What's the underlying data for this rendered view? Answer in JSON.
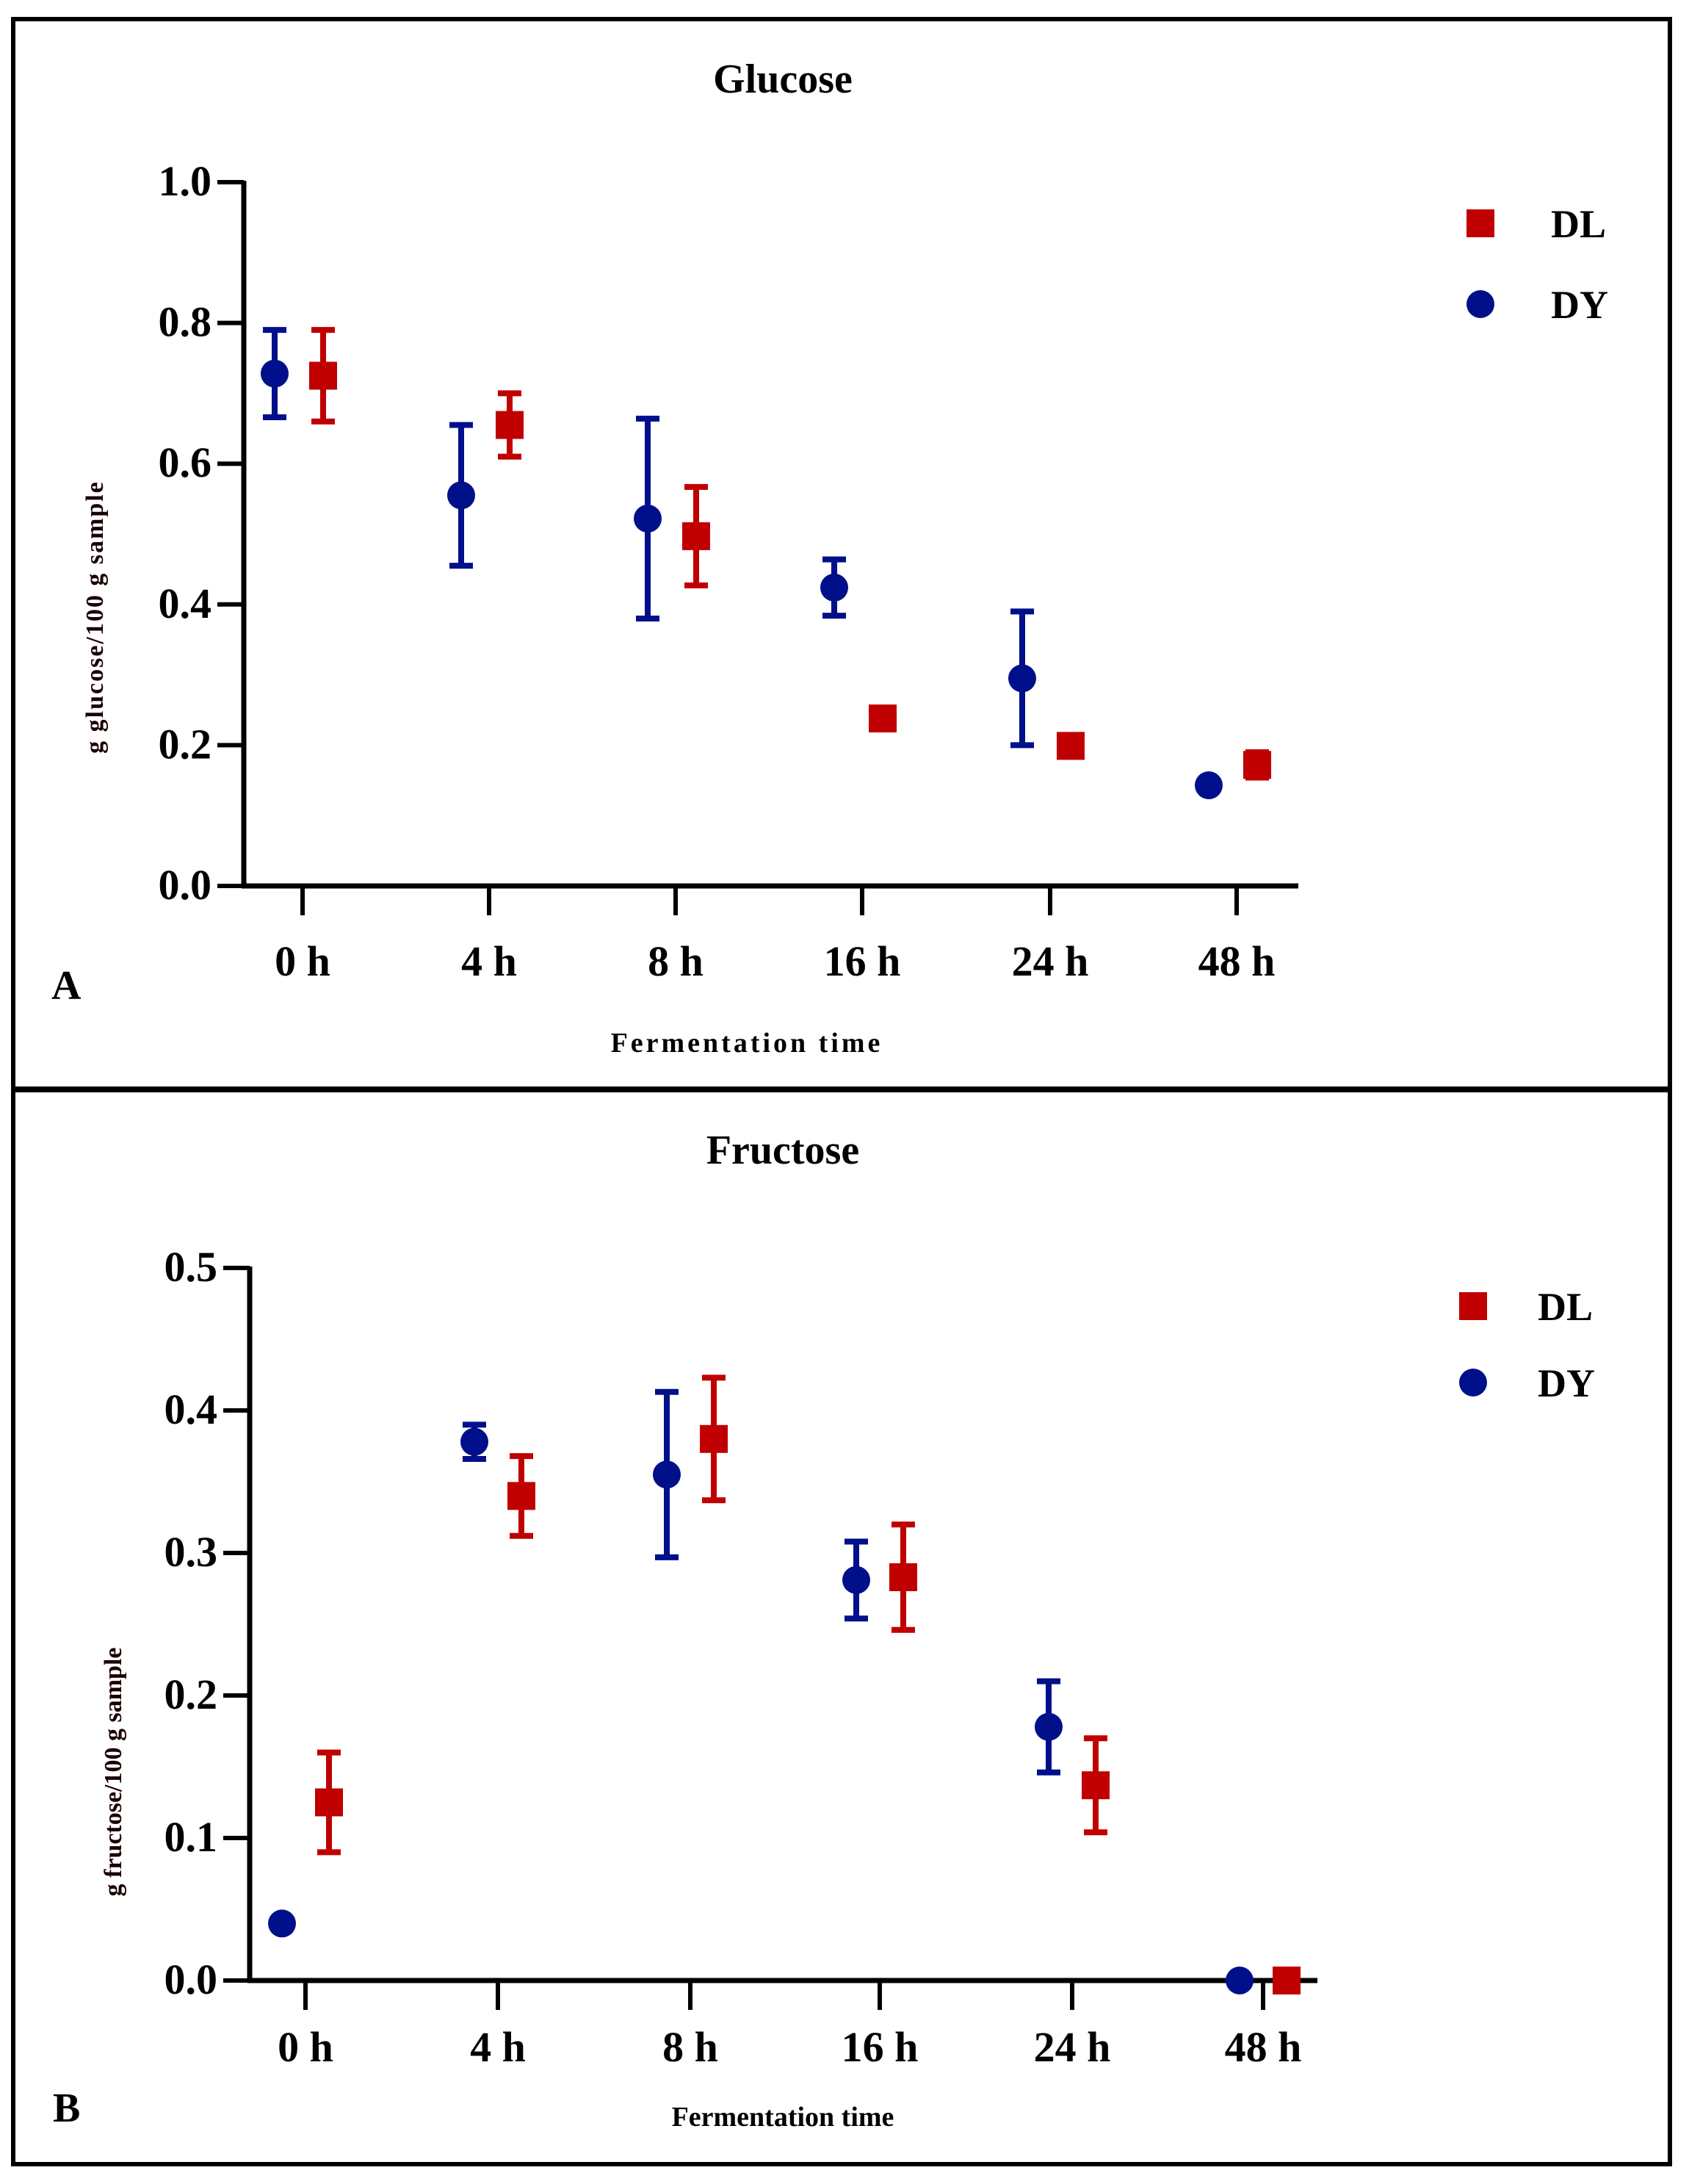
{
  "colors": {
    "DL": "#c00000",
    "DY": "#000f8a"
  },
  "chart_data": [
    {
      "type": "scatter",
      "panel_label": "A",
      "title": "Glucose",
      "xlabel": "Fermentation time",
      "ylabel": "g glucose/100 g sample",
      "categories": [
        "0 h",
        "4 h",
        "8 h",
        "16 h",
        "24 h",
        "48 h"
      ],
      "ylim": [
        0,
        1.0
      ],
      "yticks": [
        "0.0",
        "0.2",
        "0.4",
        "0.6",
        "0.8",
        "1.0"
      ],
      "legend_position": "top-right",
      "series": [
        {
          "name": "DL",
          "marker": "square",
          "values": [
            0.725,
            0.655,
            0.497,
            0.238,
            0.199,
            0.172
          ],
          "errors": [
            0.065,
            0.045,
            0.07,
            0,
            0,
            0.018
          ]
        },
        {
          "name": "DY",
          "marker": "circle",
          "values": [
            0.728,
            0.555,
            0.522,
            0.424,
            0.295,
            0.143
          ],
          "errors": [
            0.062,
            0.1,
            0.142,
            0.04,
            0.095,
            0
          ]
        }
      ]
    },
    {
      "type": "scatter",
      "panel_label": "B",
      "title": "Fructose",
      "xlabel": "Fermentation time",
      "ylabel": "g fructose/100 g sample",
      "categories": [
        "0 h",
        "4 h",
        "8 h",
        "16 h",
        "24 h",
        "48 h"
      ],
      "ylim": [
        0,
        0.5
      ],
      "yticks": [
        "0.0",
        "0.1",
        "0.2",
        "0.3",
        "0.4",
        "0.5"
      ],
      "legend_position": "top-right",
      "series": [
        {
          "name": "DL",
          "marker": "square",
          "values": [
            0.125,
            0.34,
            0.38,
            0.283,
            0.137,
            0.0
          ],
          "errors": [
            0.035,
            0.028,
            0.043,
            0.037,
            0.033,
            0
          ]
        },
        {
          "name": "DY",
          "marker": "circle",
          "values": [
            0.04,
            0.378,
            0.355,
            0.281,
            0.178,
            0.0
          ],
          "errors": [
            0,
            0.012,
            0.058,
            0.027,
            0.032,
            0
          ]
        }
      ]
    }
  ]
}
